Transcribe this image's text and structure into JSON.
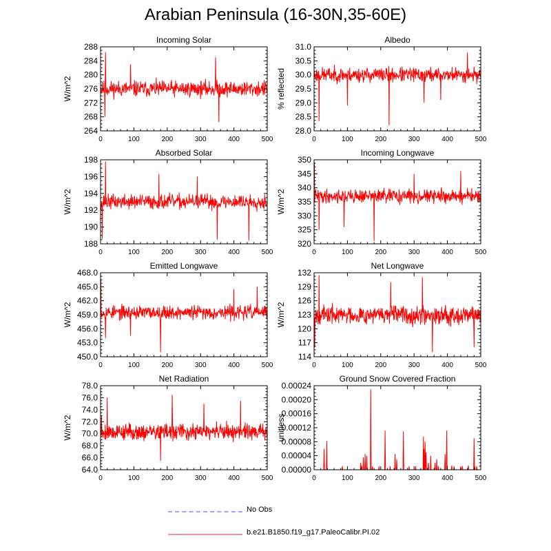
{
  "title": "Arabian Peninsula (16-30N,35-60E)",
  "chart_data": [
    {
      "type": "line",
      "title": "Incoming Solar",
      "ylabel": "W/m^2",
      "xlim": [
        0,
        500
      ],
      "ylim": [
        264,
        288
      ],
      "xticks": [
        0,
        100,
        200,
        300,
        400,
        500
      ],
      "yticks": [
        "264",
        "268",
        "272",
        "276",
        "280",
        "284",
        "288"
      ],
      "series": [
        {
          "values_mean": 276.0,
          "values_spread": 2.6,
          "seed": 11,
          "spikes": [
            [
              15,
              286.5
            ],
            [
              13,
              268.0
            ],
            [
              90,
              283.0
            ],
            [
              345,
              285.0
            ],
            [
              355,
              266.5
            ],
            [
              5,
              278.0
            ]
          ]
        }
      ]
    },
    {
      "type": "line",
      "title": "Albedo",
      "ylabel": "% reflected",
      "xlim": [
        0,
        500
      ],
      "ylim": [
        28.0,
        31.0
      ],
      "xticks": [
        0,
        100,
        200,
        300,
        400,
        500
      ],
      "yticks": [
        "28.0",
        "28.5",
        "29.0",
        "29.5",
        "30.0",
        "30.5",
        "31.0"
      ],
      "series": [
        {
          "values_mean": 30.0,
          "values_spread": 0.3,
          "seed": 23,
          "spikes": [
            [
              15,
              28.35
            ],
            [
              225,
              28.2
            ],
            [
              100,
              28.9
            ],
            [
              330,
              29.0
            ],
            [
              380,
              29.1
            ],
            [
              460,
              30.8
            ]
          ]
        }
      ]
    },
    {
      "type": "line",
      "title": "Absorbed Solar",
      "ylabel": "W/m^2",
      "xlim": [
        0,
        500
      ],
      "ylim": [
        188,
        198
      ],
      "xticks": [
        0,
        100,
        200,
        300,
        400,
        500
      ],
      "yticks": [
        "188",
        "190",
        "192",
        "194",
        "196",
        "198"
      ],
      "series": [
        {
          "values_mean": 193.0,
          "values_spread": 1.0,
          "seed": 37,
          "spikes": [
            [
              15,
              197.8
            ],
            [
              5,
              188.6
            ],
            [
              175,
              196.3
            ],
            [
              350,
              188.5
            ],
            [
              445,
              188.4
            ],
            [
              290,
              196.0
            ]
          ]
        }
      ]
    },
    {
      "type": "line",
      "title": "Incoming Longwave",
      "ylabel": "W/m^2",
      "xlim": [
        0,
        500
      ],
      "ylim": [
        320,
        350
      ],
      "xticks": [
        0,
        100,
        200,
        300,
        400,
        500
      ],
      "yticks": [
        "320",
        "325",
        "330",
        "335",
        "340",
        "345",
        "350"
      ],
      "series": [
        {
          "values_mean": 337.0,
          "values_spread": 2.8,
          "seed": 41,
          "spikes": [
            [
              1,
              349.0
            ],
            [
              180,
              321.0
            ],
            [
              15,
              325.0
            ],
            [
              440,
              346.0
            ],
            [
              90,
              326.0
            ],
            [
              300,
              345.0
            ]
          ]
        }
      ]
    },
    {
      "type": "line",
      "title": "Emitted Longwave",
      "ylabel": "W/m^2",
      "xlim": [
        0,
        500
      ],
      "ylim": [
        450.0,
        468.0
      ],
      "xticks": [
        0,
        100,
        200,
        300,
        400,
        500
      ],
      "yticks": [
        "450.0",
        "453.0",
        "456.0",
        "459.0",
        "462.0",
        "465.0",
        "468.0"
      ],
      "series": [
        {
          "values_mean": 459.5,
          "values_spread": 1.7,
          "seed": 53,
          "spikes": [
            [
              1,
              466.5
            ],
            [
              180,
              451.0
            ],
            [
              15,
              454.0
            ],
            [
              470,
              465.0
            ],
            [
              90,
              454.5
            ],
            [
              400,
              464.5
            ]
          ]
        }
      ]
    },
    {
      "type": "line",
      "title": "Net Longwave",
      "ylabel": "W/m^2",
      "xlim": [
        0,
        500
      ],
      "ylim": [
        114,
        132
      ],
      "xticks": [
        0,
        100,
        200,
        300,
        400,
        500
      ],
      "yticks": [
        "114",
        "117",
        "120",
        "123",
        "126",
        "129",
        "132"
      ],
      "series": [
        {
          "values_mean": 123.0,
          "values_spread": 2.2,
          "seed": 67,
          "spikes": [
            [
              15,
              131.5
            ],
            [
              325,
              131.0
            ],
            [
              355,
              115.0
            ],
            [
              2,
              116.0
            ],
            [
              230,
              130.0
            ],
            [
              480,
              116.0
            ]
          ]
        }
      ]
    },
    {
      "type": "line",
      "title": "Net Radiation",
      "ylabel": "W/m^2",
      "xlim": [
        0,
        500
      ],
      "ylim": [
        64.0,
        78.0
      ],
      "xticks": [
        0,
        100,
        200,
        300,
        400,
        500
      ],
      "yticks": [
        "64.0",
        "66.0",
        "68.0",
        "70.0",
        "72.0",
        "74.0",
        "76.0",
        "78.0"
      ],
      "series": [
        {
          "values_mean": 70.3,
          "values_spread": 1.6,
          "seed": 79,
          "spikes": [
            [
              215,
              76.5
            ],
            [
              20,
              76.0
            ],
            [
              180,
              65.5
            ],
            [
              3,
              73.0
            ],
            [
              310,
              75.0
            ],
            [
              420,
              75.5
            ]
          ]
        }
      ]
    },
    {
      "type": "line",
      "title": "Ground Snow Covered Fraction",
      "ylabel": "unitless",
      "xlim": [
        0,
        500
      ],
      "ylim": [
        0.0,
        0.00024
      ],
      "xticks": [
        0,
        100,
        200,
        300,
        400,
        500
      ],
      "yticks": [
        "0.00000",
        "0.00004",
        "0.00008",
        "0.00012",
        "0.00016",
        "0.00020",
        "0.00024"
      ],
      "series": [
        {
          "sparse": true,
          "events": [
            [
              30,
              6e-05
            ],
            [
              38,
              8.2e-05
            ],
            [
              85,
              1e-05
            ],
            [
              140,
              2e-05
            ],
            [
              143,
              1e-05
            ],
            [
              148,
              3.5e-05
            ],
            [
              153,
              4.5e-05
            ],
            [
              158,
              4e-05
            ],
            [
              170,
              0.00023
            ],
            [
              175,
              1e-05
            ],
            [
              195,
              1e-05
            ],
            [
              213,
              0.000112
            ],
            [
              228,
              1e-05
            ],
            [
              243,
              4.5e-05
            ],
            [
              248,
              3e-05
            ],
            [
              268,
              0.00011
            ],
            [
              285,
              1e-05
            ],
            [
              305,
              1e-05
            ],
            [
              328,
              9.5e-05
            ],
            [
              330,
              6e-05
            ],
            [
              333,
              8e-05
            ],
            [
              336,
              5e-05
            ],
            [
              343,
              2e-05
            ],
            [
              350,
              4e-05
            ],
            [
              363,
              2e-05
            ],
            [
              368,
              3e-05
            ],
            [
              373,
              1e-05
            ],
            [
              393,
              4.5e-05
            ],
            [
              398,
              0.000112
            ],
            [
              413,
              1.2e-05
            ],
            [
              420,
              1e-05
            ],
            [
              440,
              1e-05
            ],
            [
              445,
              1e-05
            ],
            [
              463,
              1.2e-05
            ],
            [
              480,
              9e-05
            ],
            [
              482,
              1e-05
            ],
            [
              488,
              1e-05
            ]
          ]
        }
      ]
    }
  ],
  "legend": [
    {
      "label": "No Obs",
      "color": "#a0a0ff",
      "style": "dashed"
    },
    {
      "label": "b.e21.B1850.f19_g17.PaleoCalibr.PI.02",
      "color": "#ff9090",
      "style": "solid"
    }
  ],
  "series_color": "#ff0000"
}
